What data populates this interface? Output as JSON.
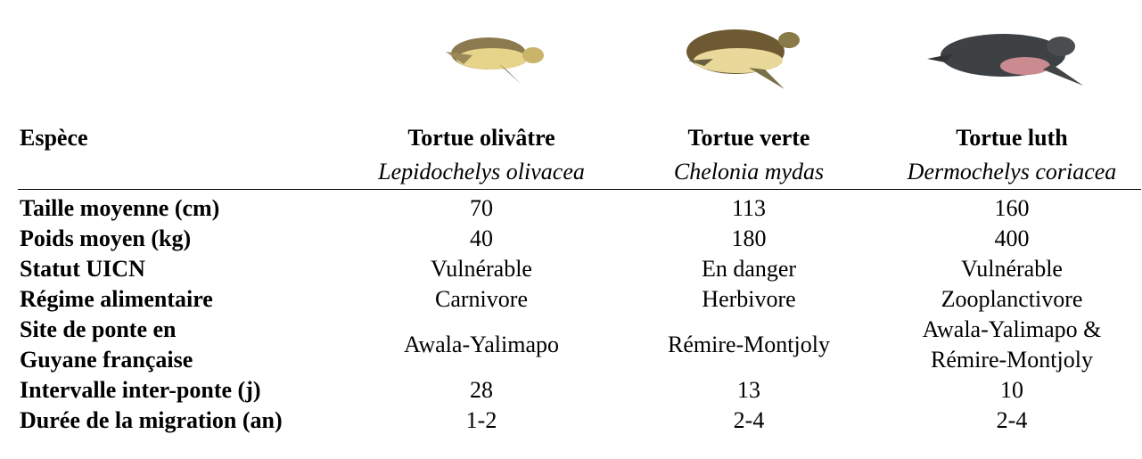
{
  "header": {
    "label": "Espèce",
    "species": [
      {
        "name": "Tortue olivâtre",
        "latin": "Lepidochelys olivacea"
      },
      {
        "name": "Tortue verte",
        "latin": "Chelonia mydas"
      },
      {
        "name": "Tortue luth",
        "latin": "Dermochelys coriacea"
      }
    ]
  },
  "rows": [
    {
      "label": "Taille moyenne (cm)",
      "cells": [
        "70",
        "113",
        "160"
      ]
    },
    {
      "label": "Poids moyen (kg)",
      "cells": [
        "40",
        "180",
        "400"
      ]
    },
    {
      "label": "Statut UICN",
      "cells": [
        "Vulnérable",
        "En danger",
        "Vulnérable"
      ]
    },
    {
      "label": "Régime alimentaire",
      "cells": [
        "Carnivore",
        "Herbivore",
        "Zooplanctivore"
      ]
    },
    {
      "label": "Site de ponte en\nGuyane française",
      "cells": [
        "Awala-Yalimapo",
        "Rémire-Montjoly",
        "Awala-Yalimapo &\nRémire-Montjoly"
      ]
    },
    {
      "label": "Intervalle inter-ponte (j)",
      "cells": [
        "28",
        "13",
        "10"
      ]
    },
    {
      "label": "Durée de la migration (an)",
      "cells": [
        "1-2",
        "2-4",
        "2-4"
      ]
    }
  ]
}
